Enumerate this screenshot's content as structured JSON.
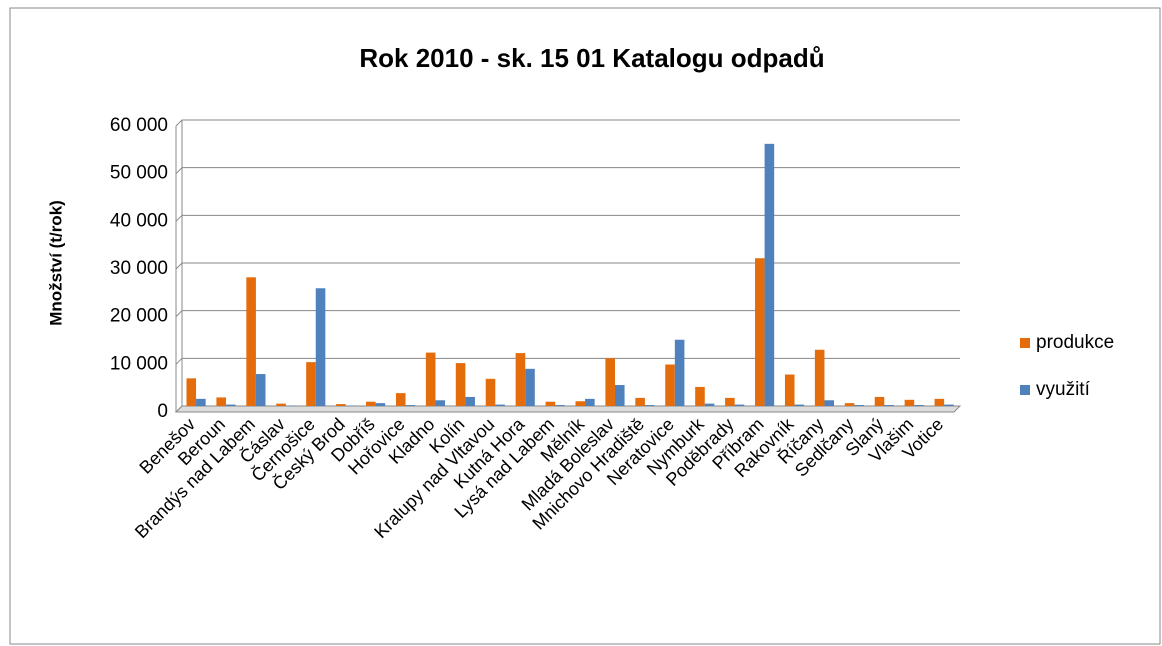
{
  "chart_data": {
    "type": "bar",
    "title": "Rok 2010 - sk. 15 01 Katalogu odpadů",
    "y_label": "Množství (t/rok)",
    "categories": [
      "Benešov",
      "Beroun",
      "Brandýs nad Labem",
      "Čáslav",
      "Černošice",
      "Český Brod",
      "Dobříš",
      "Hořovice",
      "Kladno",
      "Kolín",
      "Kralupy nad Vltavou",
      "Kutná Hora",
      "Lysá nad Labem",
      "Mělník",
      "Mladá Boleslav",
      "Mnichovo Hradiště",
      "Neratovice",
      "Nymburk",
      "Poděbrady",
      "Příbram",
      "Rakovník",
      "Říčany",
      "Sedlčany",
      "Slaný",
      "Vlašim",
      "Votice"
    ],
    "series": [
      {
        "name": "produkce",
        "color": "#e46c0a",
        "values": [
          5800,
          1800,
          27000,
          500,
          9200,
          400,
          900,
          2700,
          11200,
          9000,
          5700,
          11100,
          900,
          1000,
          10000,
          1700,
          8700,
          4000,
          1700,
          31000,
          6600,
          11800,
          600,
          1900,
          1300,
          1500
        ]
      },
      {
        "name": "využití",
        "color": "#4f81bd",
        "values": [
          1500,
          300,
          6700,
          100,
          24700,
          100,
          600,
          200,
          1200,
          1900,
          300,
          7800,
          200,
          1500,
          4400,
          200,
          13900,
          500,
          300,
          55000,
          300,
          1200,
          200,
          200,
          200,
          300
        ]
      }
    ],
    "ylim": [
      0,
      60000
    ],
    "yticks": [
      0,
      {
        "value": 10000,
        "label": "10 000"
      },
      {
        "value": 20000,
        "label": "20 000"
      },
      {
        "value": 30000,
        "label": "30 000"
      },
      {
        "value": 40000,
        "label": "40 000"
      },
      {
        "value": 50000,
        "label": "50 000"
      },
      {
        "value": 60000,
        "label": "60 000"
      }
    ],
    "grid": true,
    "legend": "right"
  }
}
